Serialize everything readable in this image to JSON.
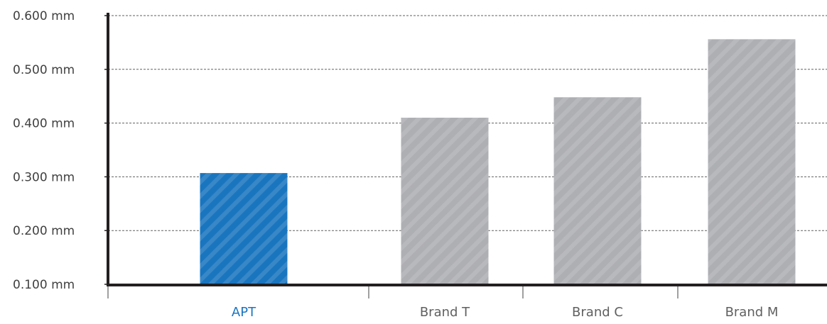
{
  "chart_data": {
    "type": "bar",
    "categories": [
      "APT",
      "Brand T",
      "Brand C",
      "Brand M"
    ],
    "values": [
      0.307,
      0.41,
      0.448,
      0.556
    ],
    "ylim": [
      0.1,
      0.6
    ],
    "yticks": [
      0.1,
      0.2,
      0.3,
      0.4,
      0.5,
      0.6
    ],
    "ytick_labels": [
      "0.100 mm",
      "0.200 mm",
      "0.300 mm",
      "0.400 mm",
      "0.500 mm",
      "0.600 mm"
    ],
    "grid": true,
    "bar_colors": [
      "#1a75bf",
      "#aeafb3",
      "#aeafb3",
      "#aeafb3"
    ],
    "label_colors": [
      "#1a75bf",
      "#606060",
      "#606060",
      "#606060"
    ],
    "axis_color": "#231f20",
    "tick_label_color": "#404040",
    "grid_color": "#606060",
    "pattern": "diagonal-stripes"
  }
}
